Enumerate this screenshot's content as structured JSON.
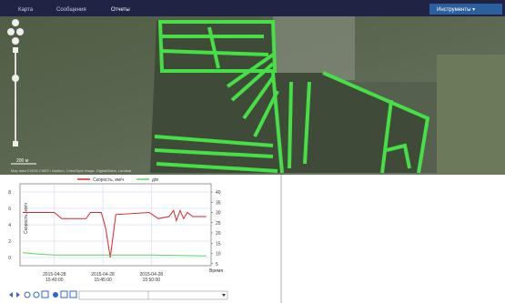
{
  "nav": {
    "items": [
      "Карта",
      "Сообщения",
      "Отчеты"
    ],
    "tools": "Инструменты ▾"
  },
  "map": {
    "scale": "200 м",
    "attribution": "Map data ©2015 CNES / Astrium, Cnes/Spot Image, DigitalGlobe, Landsat"
  },
  "chart": {
    "y_label": "Скорость, км/ч",
    "x_label": "Время",
    "xlim": [
      "15:36:27",
      "15:56:10"
    ],
    "xticks": [
      {
        "value": "15:40:00",
        "label": [
          "2015-04-28",
          "15:40:00"
        ]
      },
      {
        "value": "15:45:00",
        "label": [
          "2015-04-28",
          "15:45:00"
        ]
      },
      {
        "value": "15:50:00",
        "label": [
          "2015-04-28",
          "15:50:00"
        ]
      }
    ],
    "ylim": [
      -1,
      9
    ],
    "yticks": [
      0,
      2,
      4,
      6,
      8
    ],
    "y2lim": [
      4,
      44
    ],
    "y2ticks": [
      5,
      10,
      15,
      20,
      25,
      30,
      35,
      40
    ],
    "series": [
      {
        "name": "Скорость, км/ч",
        "color": "#d9262e",
        "axis": "y2",
        "x": [
          "15:36:44",
          "15:40:00",
          "15:40:45",
          "15:43:16",
          "15:43:43",
          "15:44:50",
          "15:45:18",
          "15:45:46",
          "15:46:20",
          "15:49:47",
          "15:50:43",
          "15:51:50",
          "15:52:18",
          "15:52:35",
          "15:52:58",
          "15:53:20",
          "15:53:43",
          "15:54:16",
          "15:55:40"
        ],
        "values": [
          30,
          30,
          27,
          27,
          30,
          30,
          22,
          8,
          29,
          30,
          27,
          28,
          31,
          26,
          31,
          27,
          30,
          28,
          28
        ]
      },
      {
        "name": "д/в",
        "color": "#5fd35f",
        "axis": "y",
        "x": [
          "15:36:44",
          "15:38:30",
          "15:40:00",
          "15:45:00",
          "15:50:00",
          "15:55:40"
        ],
        "values": [
          0.6,
          0.4,
          0.3,
          0.3,
          0.3,
          0.2
        ]
      }
    ]
  }
}
